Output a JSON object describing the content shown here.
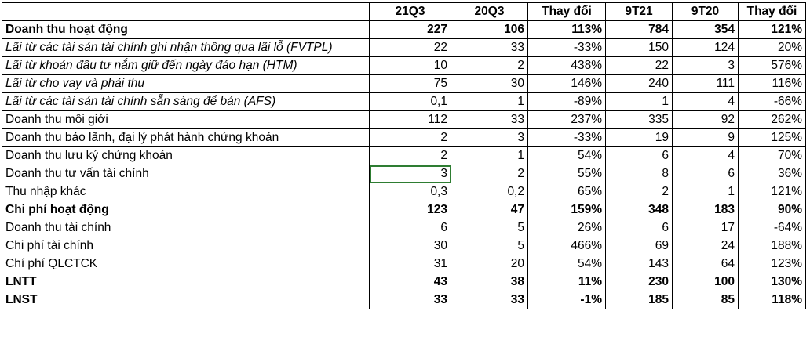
{
  "header": [
    "",
    "21Q3",
    "20Q3",
    "Thay đổi",
    "9T21",
    "9T20",
    "Thay đổi"
  ],
  "rows": [
    {
      "label": "Doanh thu hoạt động",
      "v": [
        "227",
        "106",
        "113%",
        "784",
        "354",
        "121%"
      ],
      "style": "bold"
    },
    {
      "label": "Lãi từ các tài sản tài chính ghi nhận thông qua lãi lỗ (FVTPL)",
      "v": [
        "22",
        "33",
        "-33%",
        "150",
        "124",
        "20%"
      ],
      "style": "italic"
    },
    {
      "label": "Lãi từ khoản đầu tư nắm giữ đến ngày đáo hạn (HTM)",
      "v": [
        "10",
        "2",
        "438%",
        "22",
        "3",
        "576%"
      ],
      "style": "italic"
    },
    {
      "label": "Lãi từ cho vay và phải thu",
      "v": [
        "75",
        "30",
        "146%",
        "240",
        "111",
        "116%"
      ],
      "style": "italic"
    },
    {
      "label": "Lãi từ các tài sản tài chính sẵn sàng để bán (AFS)",
      "v": [
        "0,1",
        "1",
        "-89%",
        "1",
        "4",
        "-66%"
      ],
      "style": "italic"
    },
    {
      "label": "Doanh thu môi giới",
      "v": [
        "112",
        "33",
        "237%",
        "335",
        "92",
        "262%"
      ],
      "style": "normal"
    },
    {
      "label": "Doanh thu bảo lãnh, đại lý phát hành chứng khoán",
      "v": [
        "2",
        "3",
        "-33%",
        "19",
        "9",
        "125%"
      ],
      "style": "normal"
    },
    {
      "label": "Doanh thu lưu ký chứng khoán",
      "v": [
        "2",
        "1",
        "54%",
        "6",
        "4",
        "70%"
      ],
      "style": "normal"
    },
    {
      "label": "Doanh thu tư vấn tài chính",
      "v": [
        "3",
        "2",
        "55%",
        "8",
        "6",
        "36%"
      ],
      "style": "normal"
    },
    {
      "label": "Thu nhập khác",
      "v": [
        "0,3",
        "0,2",
        "65%",
        "2",
        "1",
        "121%"
      ],
      "style": "normal"
    },
    {
      "label": "Chi phí hoạt động",
      "v": [
        "123",
        "47",
        "159%",
        "348",
        "183",
        "90%"
      ],
      "style": "bold"
    },
    {
      "label": "Doanh thu tài chính",
      "v": [
        "6",
        "5",
        "26%",
        "6",
        "17",
        "-64%"
      ],
      "style": "normal"
    },
    {
      "label": "Chi phí tài chính",
      "v": [
        "30",
        "5",
        "466%",
        "69",
        "24",
        "188%"
      ],
      "style": "normal"
    },
    {
      "label": "Chí phí QLCTCK",
      "v": [
        "31",
        "20",
        "54%",
        "143",
        "64",
        "123%"
      ],
      "style": "normal"
    },
    {
      "label": "LNTT",
      "v": [
        "43",
        "38",
        "11%",
        "230",
        "100",
        "130%"
      ],
      "style": "bold"
    },
    {
      "label": "LNST",
      "v": [
        "33",
        "33",
        "-1%",
        "185",
        "85",
        "118%"
      ],
      "style": "bold"
    }
  ]
}
